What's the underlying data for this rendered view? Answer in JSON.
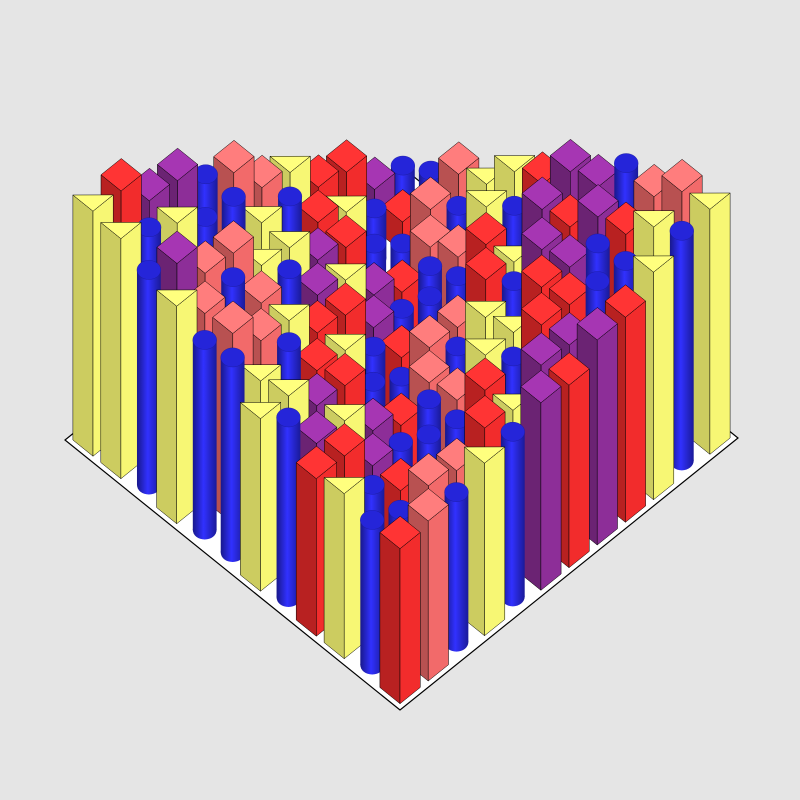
{
  "chart_data": {
    "type": "bar3d",
    "zlim": [
      0,
      100
    ],
    "colors": [
      "#2b2bff",
      "#ff2e2e",
      "#ff7070",
      "#9430a0",
      "#ffff78"
    ],
    "shapes": [
      "cylinder",
      "square",
      "square",
      "square",
      "triangle"
    ],
    "values": [
      [
        10,
        17,
        31,
        36,
        50,
        54,
        68,
        71,
        83,
        85,
        96,
        98
      ],
      [
        16,
        12,
        26,
        30,
        45,
        48,
        62,
        64,
        77,
        79,
        91,
        92
      ],
      [
        32,
        20,
        15,
        29,
        34,
        48,
        50,
        64,
        66,
        78,
        80,
        91
      ],
      [
        35,
        34,
        24,
        20,
        33,
        38,
        52,
        54,
        67,
        69,
        81,
        82
      ],
      [
        50,
        39,
        38,
        28,
        25,
        39,
        42,
        55,
        58,
        70,
        71,
        82
      ],
      [
        53,
        52,
        42,
        43,
        33,
        30,
        43,
        46,
        58,
        60,
        72,
        73
      ],
      [
        68,
        57,
        56,
        46,
        47,
        37,
        34,
        47,
        49,
        62,
        63,
        75
      ],
      [
        70,
        70,
        58,
        59,
        49,
        51,
        41,
        39,
        52,
        53,
        65,
        66
      ],
      [
        83,
        71,
        72,
        61,
        63,
        52,
        55,
        46,
        44,
        56,
        57,
        69
      ],
      [
        84,
        84,
        73,
        74,
        64,
        66,
        56,
        59,
        50,
        49,
        60,
        60
      ],
      [
        97,
        85,
        86,
        75,
        76,
        66,
        69,
        59,
        63,
        54,
        53,
        64
      ],
      [
        98,
        96,
        86,
        87,
        76,
        78,
        69,
        72,
        63,
        66,
        58,
        62
      ]
    ]
  }
}
